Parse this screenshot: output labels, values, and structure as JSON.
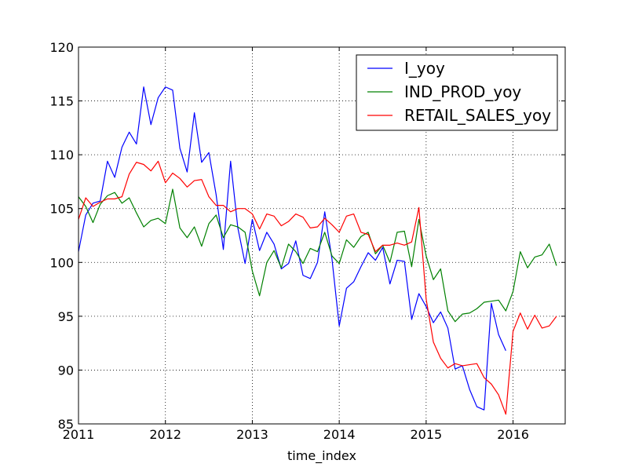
{
  "chart_data": {
    "type": "line",
    "xlabel": "time_index",
    "ylabel": "",
    "xlim": [
      2011.0,
      2016.6
    ],
    "ylim": [
      85,
      120
    ],
    "x_ticks": [
      2011,
      2012,
      2013,
      2014,
      2015,
      2016
    ],
    "x_tick_labels": [
      "2011",
      "2012",
      "2013",
      "2014",
      "2015",
      "2016"
    ],
    "y_ticks": [
      85,
      90,
      95,
      100,
      105,
      110,
      115,
      120
    ],
    "y_tick_labels": [
      "85",
      "90",
      "95",
      "100",
      "105",
      "110",
      "115",
      "120"
    ],
    "grid": true,
    "legend_position": "top-right",
    "x_start": 2011.0,
    "x_step_months": 1,
    "series": [
      {
        "name": "I_yoy",
        "color": "#0000ff",
        "values": [
          101.0,
          104.4,
          105.5,
          105.7,
          109.4,
          107.9,
          110.7,
          112.1,
          111.0,
          116.3,
          112.8,
          115.3,
          116.3,
          116.0,
          110.6,
          108.4,
          113.9,
          109.3,
          110.2,
          106.3,
          101.2,
          109.4,
          103.2,
          99.9,
          104.0,
          101.1,
          102.8,
          101.7,
          99.4,
          99.9,
          102.0,
          98.8,
          98.5,
          100.0,
          104.7,
          100.3,
          94.1,
          97.6,
          98.2,
          99.6,
          100.9,
          100.2,
          101.4,
          98.0,
          100.2,
          100.1,
          94.7,
          97.1,
          95.9,
          94.4,
          95.4,
          93.9,
          90.1,
          90.4,
          88.2,
          86.6,
          86.3,
          96.2,
          93.3,
          91.8
        ]
      },
      {
        "name": "IND_PROD_yoy",
        "color": "#008000",
        "values": [
          106.1,
          105.2,
          103.7,
          105.4,
          106.2,
          106.5,
          105.5,
          106.0,
          104.6,
          103.3,
          103.9,
          104.1,
          103.6,
          106.8,
          103.2,
          102.3,
          103.3,
          101.5,
          103.6,
          104.4,
          102.3,
          103.5,
          103.3,
          102.8,
          99.2,
          96.9,
          100.0,
          101.1,
          99.5,
          101.7,
          101.0,
          99.9,
          101.3,
          101.0,
          102.8,
          100.6,
          99.9,
          102.1,
          101.4,
          102.4,
          102.8,
          100.8,
          101.6,
          100.0,
          102.8,
          102.9,
          99.6,
          104.0,
          100.6,
          98.4,
          99.4,
          95.5,
          94.5,
          95.2,
          95.3,
          95.7,
          96.3,
          96.4,
          96.5,
          95.5,
          97.3,
          101.0,
          99.5,
          100.5,
          100.7,
          101.7,
          99.7
        ]
      },
      {
        "name": "RETAIL_SALES_yoy",
        "color": "#ff0000",
        "values": [
          104.0,
          106.0,
          105.2,
          105.6,
          105.9,
          105.9,
          106.1,
          108.2,
          109.3,
          109.1,
          108.5,
          109.4,
          107.4,
          108.3,
          107.8,
          107.0,
          107.6,
          107.7,
          106.1,
          105.3,
          105.3,
          104.7,
          105.0,
          105.0,
          104.5,
          103.1,
          104.5,
          104.3,
          103.4,
          103.8,
          104.5,
          104.2,
          103.2,
          103.3,
          104.1,
          103.5,
          102.8,
          104.3,
          104.5,
          102.8,
          102.6,
          101.0,
          101.6,
          101.6,
          101.8,
          101.6,
          101.9,
          105.1,
          96.6,
          92.6,
          91.1,
          90.2,
          90.6,
          90.4,
          90.5,
          90.6,
          89.3,
          88.7,
          87.7,
          85.9,
          93.6,
          95.3,
          93.8,
          95.1,
          93.9,
          94.1,
          95.0
        ]
      }
    ]
  }
}
